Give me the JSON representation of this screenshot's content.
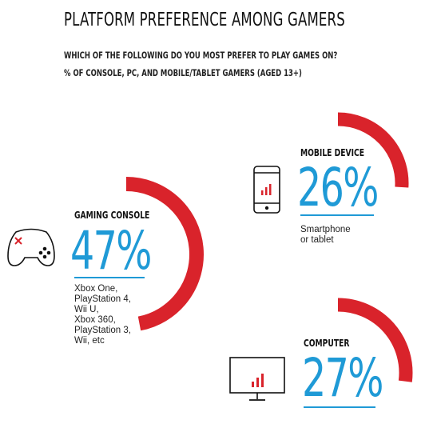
{
  "header": {
    "title": "PLATFORM PREFERENCE AMONG GAMERS",
    "question": "WHICH OF THE FOLLOWING DO YOU MOST PREFER TO PLAY GAMES ON?",
    "base": "% OF CONSOLE, PC, AND MOBILE/TABLET GAMERS (AGED 13+)"
  },
  "colors": {
    "arc": "#d9232b",
    "accent": "#1f9ad6"
  },
  "chart_data": {
    "type": "pie",
    "title": "PLATFORM PREFERENCE AMONG GAMERS",
    "unit": "%",
    "categories": [
      "GAMING CONSOLE",
      "MOBILE DEVICE",
      "COMPUTER"
    ],
    "values": [
      47,
      26,
      27
    ],
    "labels": [
      "47%",
      "26%",
      "27%"
    ],
    "segments": [
      {
        "name": "GAMING CONSOLE",
        "value": 47,
        "label": "47%",
        "description": [
          "Xbox One,",
          "PlayStation 4,",
          "Wii U,",
          "Xbox 360,",
          "PlayStation 3,",
          "Wii, etc"
        ],
        "icon": "gamepad-icon"
      },
      {
        "name": "MOBILE DEVICE",
        "value": 26,
        "label": "26%",
        "description": [
          "Smartphone",
          "or tablet"
        ],
        "icon": "smartphone-icon"
      },
      {
        "name": "COMPUTER",
        "value": 27,
        "label": "27%",
        "description": [],
        "icon": "monitor-icon"
      }
    ]
  }
}
